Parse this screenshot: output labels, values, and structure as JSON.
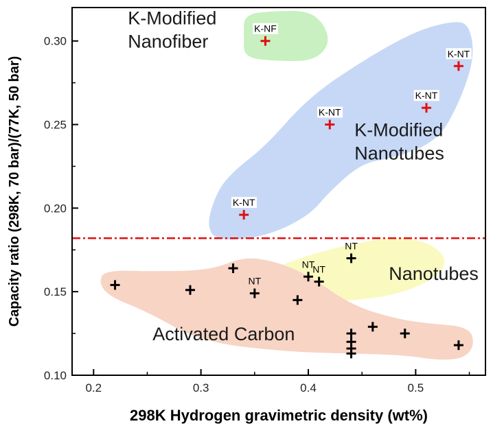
{
  "chart_data": {
    "type": "scatter",
    "xlabel": "298K Hydrogen gravimetric density (wt%)",
    "ylabel": "Capacity ratio (298K, 70 bar)/(77K, 50 bar)",
    "xlim": [
      0.18,
      0.565
    ],
    "ylim": [
      0.1,
      0.32
    ],
    "xticks": [
      0.2,
      0.3,
      0.4,
      0.5
    ],
    "xtick_labels": [
      "0.2",
      "0.3",
      "0.4",
      "0.5"
    ],
    "yticks": [
      0.1,
      0.15,
      0.2,
      0.25,
      0.3
    ],
    "ytick_labels": [
      "0.10",
      "0.15",
      "0.20",
      "0.25",
      "0.30"
    ],
    "threshold_line": {
      "y": 0.182,
      "style": "dash-dot",
      "color": "#e01010"
    },
    "regions": [
      {
        "id": "nanofiber",
        "lines": [
          "K-Modified",
          "Nanofiber"
        ],
        "color": "#c8f0c0",
        "polygon": [
          [
            0.34,
            0.316
          ],
          [
            0.37,
            0.318
          ],
          [
            0.4,
            0.318
          ],
          [
            0.415,
            0.31
          ],
          [
            0.42,
            0.298
          ],
          [
            0.405,
            0.288
          ],
          [
            0.37,
            0.288
          ],
          [
            0.34,
            0.29
          ],
          [
            0.34,
            0.303
          ]
        ]
      },
      {
        "id": "k-nanotubes",
        "lines": [
          "K-Modified",
          "Nanotubes"
        ],
        "color": "#c6d8f6",
        "polygon": [
          [
            0.36,
            0.237
          ],
          [
            0.4,
            0.266
          ],
          [
            0.45,
            0.288
          ],
          [
            0.5,
            0.306
          ],
          [
            0.535,
            0.312
          ],
          [
            0.55,
            0.31
          ],
          [
            0.555,
            0.29
          ],
          [
            0.54,
            0.262
          ],
          [
            0.52,
            0.24
          ],
          [
            0.48,
            0.23
          ],
          [
            0.45,
            0.227
          ],
          [
            0.42,
            0.21
          ],
          [
            0.4,
            0.195
          ],
          [
            0.36,
            0.183
          ],
          [
            0.315,
            0.18
          ],
          [
            0.305,
            0.19
          ],
          [
            0.315,
            0.21
          ],
          [
            0.33,
            0.222
          ]
        ]
      },
      {
        "id": "nanotubes",
        "lines": [
          "Nanotubes"
        ],
        "color": "#fafac0",
        "polygon": [
          [
            0.355,
            0.161
          ],
          [
            0.4,
            0.172
          ],
          [
            0.45,
            0.18
          ],
          [
            0.49,
            0.183
          ],
          [
            0.52,
            0.177
          ],
          [
            0.53,
            0.166
          ],
          [
            0.51,
            0.155
          ],
          [
            0.48,
            0.148
          ],
          [
            0.445,
            0.145
          ],
          [
            0.4,
            0.143
          ],
          [
            0.37,
            0.141
          ],
          [
            0.355,
            0.145
          ]
        ]
      },
      {
        "id": "activated-carbon",
        "lines": [
          "Activated Carbon"
        ],
        "color": "#f7d4c4",
        "polygon": [
          [
            0.21,
            0.163
          ],
          [
            0.26,
            0.162
          ],
          [
            0.31,
            0.163
          ],
          [
            0.34,
            0.171
          ],
          [
            0.37,
            0.168
          ],
          [
            0.4,
            0.16
          ],
          [
            0.44,
            0.142
          ],
          [
            0.48,
            0.134
          ],
          [
            0.51,
            0.131
          ],
          [
            0.55,
            0.129
          ],
          [
            0.555,
            0.118
          ],
          [
            0.545,
            0.11
          ],
          [
            0.52,
            0.109
          ],
          [
            0.49,
            0.112
          ],
          [
            0.44,
            0.113
          ],
          [
            0.38,
            0.114
          ],
          [
            0.3,
            0.12
          ],
          [
            0.25,
            0.138
          ],
          [
            0.215,
            0.147
          ],
          [
            0.205,
            0.155
          ]
        ]
      }
    ],
    "series": [
      {
        "marker": "plus",
        "color": "#e01010",
        "points": [
          {
            "x": 0.36,
            "y": 0.3,
            "label": "K-NF"
          },
          {
            "x": 0.34,
            "y": 0.196,
            "label": "K-NT"
          },
          {
            "x": 0.42,
            "y": 0.25,
            "label": "K-NT"
          },
          {
            "x": 0.51,
            "y": 0.26,
            "label": "K-NT"
          },
          {
            "x": 0.54,
            "y": 0.285,
            "label": "K-NT"
          }
        ]
      },
      {
        "marker": "plus",
        "color": "#000000",
        "points": [
          {
            "x": 0.22,
            "y": 0.154
          },
          {
            "x": 0.29,
            "y": 0.151
          },
          {
            "x": 0.33,
            "y": 0.164
          },
          {
            "x": 0.35,
            "y": 0.149,
            "label": "NT"
          },
          {
            "x": 0.39,
            "y": 0.145
          },
          {
            "x": 0.4,
            "y": 0.159,
            "label": "NT"
          },
          {
            "x": 0.41,
            "y": 0.156,
            "label": "NT"
          },
          {
            "x": 0.44,
            "y": 0.17,
            "label": "NT"
          },
          {
            "x": 0.44,
            "y": 0.125
          },
          {
            "x": 0.44,
            "y": 0.12
          },
          {
            "x": 0.44,
            "y": 0.116
          },
          {
            "x": 0.44,
            "y": 0.113
          },
          {
            "x": 0.46,
            "y": 0.129
          },
          {
            "x": 0.49,
            "y": 0.125
          },
          {
            "x": 0.54,
            "y": 0.118
          }
        ]
      }
    ],
    "annotations": [
      {
        "region": "nanofiber",
        "x": 0.232,
        "y": 0.31
      },
      {
        "region": "k-nanotubes",
        "x": 0.443,
        "y": 0.243
      },
      {
        "region": "nanotubes",
        "x": 0.475,
        "y": 0.157
      },
      {
        "region": "activated-carbon",
        "x": 0.255,
        "y": 0.121
      }
    ],
    "grid": false,
    "legend": "none"
  }
}
